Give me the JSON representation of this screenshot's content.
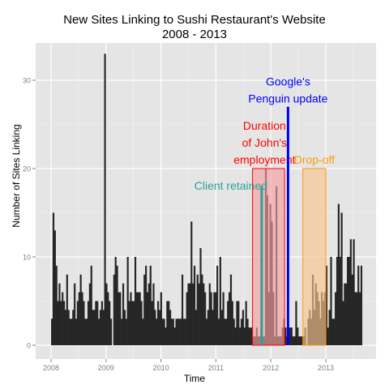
{
  "chart_data": {
    "type": "bar",
    "title": "New Sites Linking to Sushi Restaurant's Website",
    "subtitle": "2008 - 2013",
    "xlabel": "Time",
    "ylabel": "Number of Sites Linking",
    "x_ticks": [
      "2008",
      "2009",
      "2010",
      "2011",
      "2012",
      "2013"
    ],
    "y_ticks": [
      0,
      10,
      20,
      30
    ],
    "ylim": [
      0,
      33
    ],
    "grid": true,
    "bar_color": "#262626",
    "panel_background": "#e5e5e5",
    "x_start": "2008-01",
    "bars": [
      3,
      15,
      13,
      9,
      5,
      7,
      5,
      6,
      5,
      4,
      8,
      4,
      3,
      3,
      4,
      7,
      3,
      5,
      6,
      8,
      6,
      5,
      3,
      3,
      5,
      7,
      9,
      4,
      4,
      5,
      5,
      3,
      4,
      5,
      4,
      33,
      7,
      6,
      5,
      3,
      0,
      8,
      10,
      9,
      6,
      6,
      3,
      7,
      4,
      3,
      10,
      5,
      6,
      5,
      5,
      10,
      6,
      6,
      6,
      5,
      3,
      8,
      9,
      6,
      7,
      9,
      5,
      7,
      4,
      3,
      5,
      4,
      6,
      3,
      3,
      2,
      5,
      5,
      4,
      3,
      3,
      2,
      3,
      3,
      3,
      3,
      8,
      3,
      3,
      6,
      7,
      7,
      14,
      7,
      9,
      4,
      8,
      7,
      11,
      8,
      7,
      6,
      3,
      4,
      7,
      6,
      4,
      6,
      6,
      9,
      3,
      10,
      4,
      6,
      3,
      3,
      5,
      6,
      8,
      5,
      3,
      2,
      5,
      5,
      2,
      3,
      4,
      2,
      5,
      3,
      2,
      2,
      2,
      1,
      1,
      2,
      1,
      1,
      2,
      1,
      1,
      20,
      17,
      6,
      16,
      14,
      6,
      1,
      18,
      1,
      1,
      1,
      2,
      3,
      2,
      1,
      2,
      2,
      2,
      1,
      1,
      5,
      2,
      1,
      1,
      1,
      1,
      2,
      0,
      3,
      4,
      3,
      8,
      4,
      7,
      6,
      5,
      3,
      6,
      5,
      6,
      9,
      2,
      4,
      10,
      3,
      3,
      6,
      10,
      16,
      10,
      15,
      5,
      7,
      7,
      10,
      10,
      12,
      8,
      12,
      6,
      6,
      9,
      6,
      9
    ],
    "annotations": [
      {
        "type": "highlight",
        "label": "Duration of John's employment",
        "label_lines": [
          "Duration",
          "of John's",
          "employment"
        ],
        "x_start": "2011-09",
        "x_end": "2012-04",
        "y_top": 20,
        "fill": "#f4a0a0",
        "stroke": "#ff0000",
        "text_color": "#ff0000"
      },
      {
        "type": "highlight",
        "label": "Drop-off",
        "label_lines": [
          "Drop-off"
        ],
        "x_start": "2012-08",
        "x_end": "2013-01",
        "y_top": 20,
        "fill": "#f7c58f",
        "stroke": "#ff9900",
        "text_color": "#ff9900"
      },
      {
        "type": "vline",
        "label": "Google's Penguin update",
        "label_lines": [
          "Google's",
          "Penguin update"
        ],
        "x": "2012-04-24",
        "y_top": 27,
        "color": "#0000ff"
      },
      {
        "type": "vline",
        "label": "Client retained",
        "label_lines": [
          "Client retained"
        ],
        "x": "2011-11",
        "y_top": 18,
        "color": "#2aa198"
      }
    ]
  }
}
